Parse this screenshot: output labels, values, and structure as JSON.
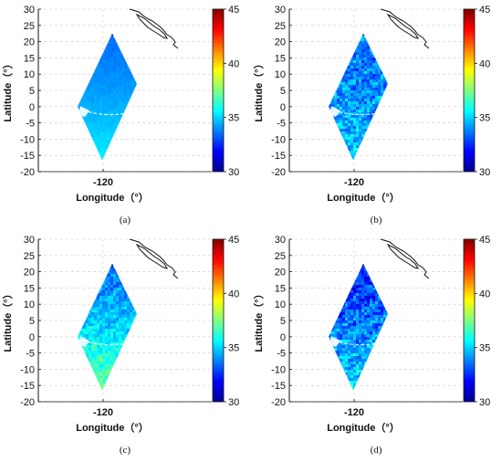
{
  "chart_data": [
    {
      "type": "heatmap",
      "caption": "(a)",
      "xlabel": "Longitude（°）",
      "ylabel": "Latitude（°）",
      "xticks": [
        "-120"
      ],
      "yticks": [
        "30",
        "25",
        "20",
        "15",
        "10",
        "5",
        "0",
        "-5",
        "-10",
        "-15",
        "-20"
      ],
      "ylim": [
        -20,
        30
      ],
      "colorbar": {
        "range": [
          30,
          45
        ],
        "ticks": [
          "45",
          "40",
          "35",
          "30"
        ]
      },
      "grid": true,
      "pattern": {
        "top_value": 33.5,
        "bottom_value": 35.5,
        "noise": 0.15
      }
    },
    {
      "type": "heatmap",
      "caption": "(b)",
      "xlabel": "Longitude（°）",
      "ylabel": "Latitude（°）",
      "xticks": [
        "-120"
      ],
      "yticks": [
        "30",
        "25",
        "20",
        "15",
        "10",
        "5",
        "0",
        "-5",
        "-10",
        "-15",
        "-20"
      ],
      "ylim": [
        -20,
        30
      ],
      "colorbar": {
        "range": [
          30,
          45
        ],
        "ticks": [
          "45",
          "40",
          "35",
          "30"
        ]
      },
      "grid": true,
      "pattern": {
        "top_value": 33.5,
        "bottom_value": 35.0,
        "noise": 1.2
      }
    },
    {
      "type": "heatmap",
      "caption": "(c)",
      "xlabel": "Longitude（°）",
      "ylabel": "Latitude（°）",
      "xticks": [
        "-120"
      ],
      "yticks": [
        "30",
        "25",
        "20",
        "15",
        "10",
        "5",
        "0",
        "-5",
        "-10",
        "-15",
        "-20"
      ],
      "ylim": [
        -20,
        30
      ],
      "colorbar": {
        "range": [
          30,
          45
        ],
        "ticks": [
          "45",
          "40",
          "35",
          "30"
        ]
      },
      "grid": true,
      "pattern": {
        "top_value": 33.5,
        "bottom_value": 37.5,
        "noise": 0.9
      }
    },
    {
      "type": "heatmap",
      "caption": "(d)",
      "xlabel": "Longitude（°）",
      "ylabel": "Latitude（°）",
      "xticks": [
        "-120"
      ],
      "yticks": [
        "30",
        "25",
        "20",
        "15",
        "10",
        "5",
        "0",
        "-5",
        "-10",
        "-15",
        "-20"
      ],
      "ylim": [
        -20,
        30
      ],
      "colorbar": {
        "range": [
          30,
          45
        ],
        "ticks": [
          "45",
          "40",
          "35",
          "30"
        ]
      },
      "grid": true,
      "pattern": {
        "top_value": 32.5,
        "bottom_value": 35.5,
        "noise": 1.3
      }
    }
  ],
  "colors": {
    "axis": "#111111",
    "grid": "#cccccc",
    "coast": "#111111",
    "glint": "#ffffff"
  }
}
